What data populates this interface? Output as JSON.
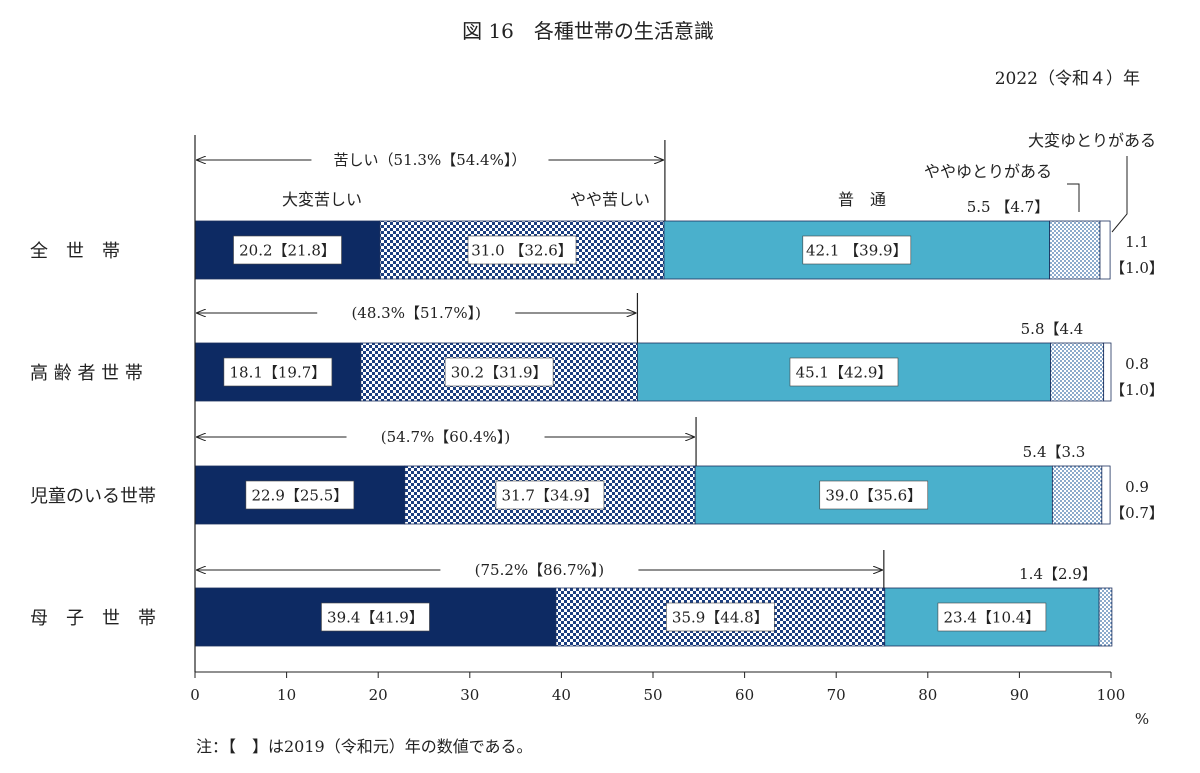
{
  "chart_data": {
    "type": "bar",
    "stacked": true,
    "orientation": "horizontal",
    "title": "図 16　各種世帯の生活意識",
    "subtitle": "2022（令和４）年",
    "unit_label": "%",
    "note": "注：【　】は2019（令和元）年の数値である。",
    "xlim": [
      0,
      100
    ],
    "x_ticks": [
      "0",
      "10",
      "20",
      "30",
      "40",
      "50",
      "60",
      "70",
      "80",
      "90",
      "100"
    ],
    "categories": [
      "全　世　帯",
      "高 齢 者 世 帯",
      "児童のいる世帯",
      "母　子　世　帯"
    ],
    "series": [
      {
        "name": "大変苦しい",
        "color": "#0d2a63",
        "values": [
          20.2,
          18.1,
          22.9,
          39.4
        ],
        "previous": [
          21.8,
          19.7,
          25.5,
          41.9
        ],
        "labels": [
          "20.2【21.8】",
          "18.1【19.7】",
          "22.9【25.5】",
          "39.4【41.9】"
        ]
      },
      {
        "name": "やや苦しい",
        "color": "#3d5f9e",
        "values": [
          31.0,
          30.2,
          31.7,
          35.9
        ],
        "previous": [
          32.6,
          31.9,
          34.9,
          44.8
        ],
        "labels": [
          "31.0 【32.6】",
          "30.2【31.9】",
          "31.7【34.9】",
          "35.9【44.8】"
        ]
      },
      {
        "name": "普　通",
        "color": "#4ab0cc",
        "values": [
          42.1,
          45.1,
          39.0,
          23.4
        ],
        "previous": [
          39.9,
          42.9,
          35.6,
          10.4
        ],
        "labels": [
          "42.1 【39.9】",
          "45.1【42.9】",
          "39.0【35.6】",
          "23.4【10.4】"
        ]
      },
      {
        "name": "ややゆとりがある",
        "color": "#cfdde8",
        "values": [
          5.5,
          5.8,
          5.4,
          1.4
        ],
        "previous": [
          4.7,
          4.4,
          3.3,
          2.9
        ],
        "labels": [
          "5.5 【4.7】",
          "5.8【4.4",
          "5.4【3.3",
          "1.4【2.9】"
        ]
      },
      {
        "name": "大変ゆとりがある",
        "color": "#ffffff",
        "values": [
          1.1,
          0.8,
          0.9,
          0.0
        ],
        "previous": [
          1.0,
          1.0,
          0.7,
          null
        ],
        "labels_top": [
          "1.1",
          "0.8",
          "0.9",
          ""
        ],
        "labels_bottom": [
          "【1.0】",
          "【1.0】",
          "【0.7】",
          ""
        ]
      }
    ],
    "hardship_totals": [
      {
        "label": "苦しい（51.3%【54.4%】）",
        "value": 51.3
      },
      {
        "label": "(48.3%【51.7%】)",
        "value": 48.3
      },
      {
        "label": "(54.7%【60.4%】)",
        "value": 54.7
      },
      {
        "label": "(75.2%【86.7%】)",
        "value": 75.2
      }
    ]
  }
}
